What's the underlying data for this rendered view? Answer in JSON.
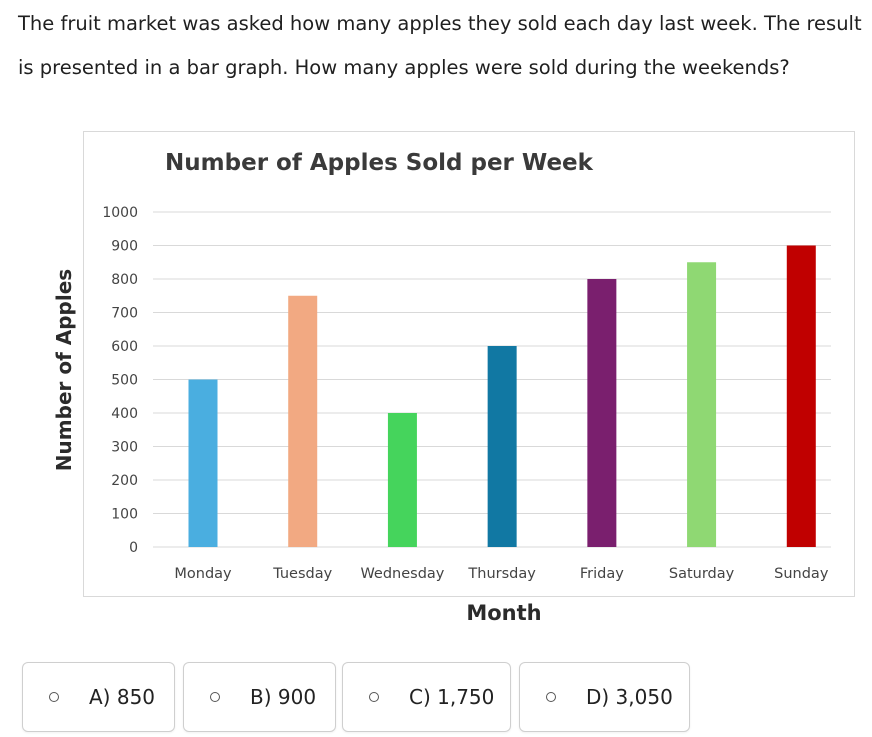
{
  "question": {
    "line1": "The fruit market was asked how many apples they sold each day last week. The result",
    "line2": "is presented in a bar graph. How many apples were sold during the weekends?"
  },
  "chart_data": {
    "type": "bar",
    "title": "Number of Apples Sold per Week",
    "xlabel": "Month",
    "ylabel": "Number of Apples",
    "categories": [
      "Monday",
      "Tuesday",
      "Wednesday",
      "Thursday",
      "Friday",
      "Saturday",
      "Sunday"
    ],
    "values": [
      500,
      750,
      400,
      600,
      800,
      850,
      900
    ],
    "colors": [
      "#4aaee0",
      "#f2a982",
      "#45d45c",
      "#1178a3",
      "#7a1f6e",
      "#8fd873",
      "#c00000"
    ],
    "ylim": [
      0,
      1000
    ],
    "yticks": [
      "1000",
      "900",
      "800",
      "700",
      "600",
      "500",
      "400",
      "300",
      "200",
      "100",
      "0"
    ],
    "grid": true
  },
  "options": [
    {
      "label": "A) 850"
    },
    {
      "label": "B) 900"
    },
    {
      "label": "C) 1,750"
    },
    {
      "label": "D) 3,050"
    }
  ]
}
